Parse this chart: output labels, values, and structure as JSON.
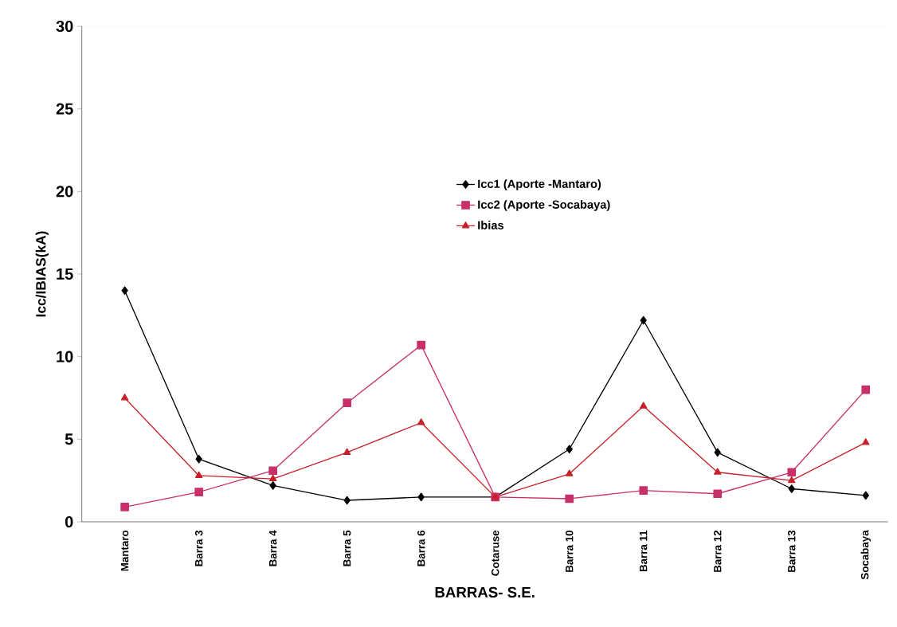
{
  "chart_data": {
    "type": "line",
    "xlabel": "BARRAS- S.E.",
    "ylabel": "Icc/IBIAS(kA)",
    "categories": [
      "Mantaro",
      "Barra 3",
      "Barra 4",
      "Barra 5",
      "Barra 6",
      "Cotaruse",
      "Barra 10",
      "Barra 11",
      "Barra 12",
      "Barra 13",
      "Socabaya"
    ],
    "series": [
      {
        "name": "Icc1 (Aporte -Mantaro)",
        "color": "#000000",
        "marker": "diamond",
        "values": [
          14.0,
          3.8,
          2.2,
          1.3,
          1.5,
          1.5,
          4.4,
          12.2,
          4.2,
          2.0,
          1.6
        ]
      },
      {
        "name": "Icc2 (Aporte -Socabaya)",
        "color": "#c8306a",
        "marker": "square",
        "values": [
          0.9,
          1.8,
          3.1,
          7.2,
          10.7,
          1.5,
          1.4,
          1.9,
          1.7,
          3.0,
          8.0
        ]
      },
      {
        "name": "Ibias",
        "color": "#c8202a",
        "marker": "triangle",
        "values": [
          7.5,
          2.8,
          2.6,
          4.2,
          6.0,
          1.5,
          2.9,
          7.0,
          3.0,
          2.5,
          4.8
        ]
      }
    ],
    "ylim": [
      0,
      30
    ],
    "yticks": [
      0,
      5,
      10,
      15,
      20,
      25,
      30
    ],
    "grid": false,
    "legend": "top"
  }
}
